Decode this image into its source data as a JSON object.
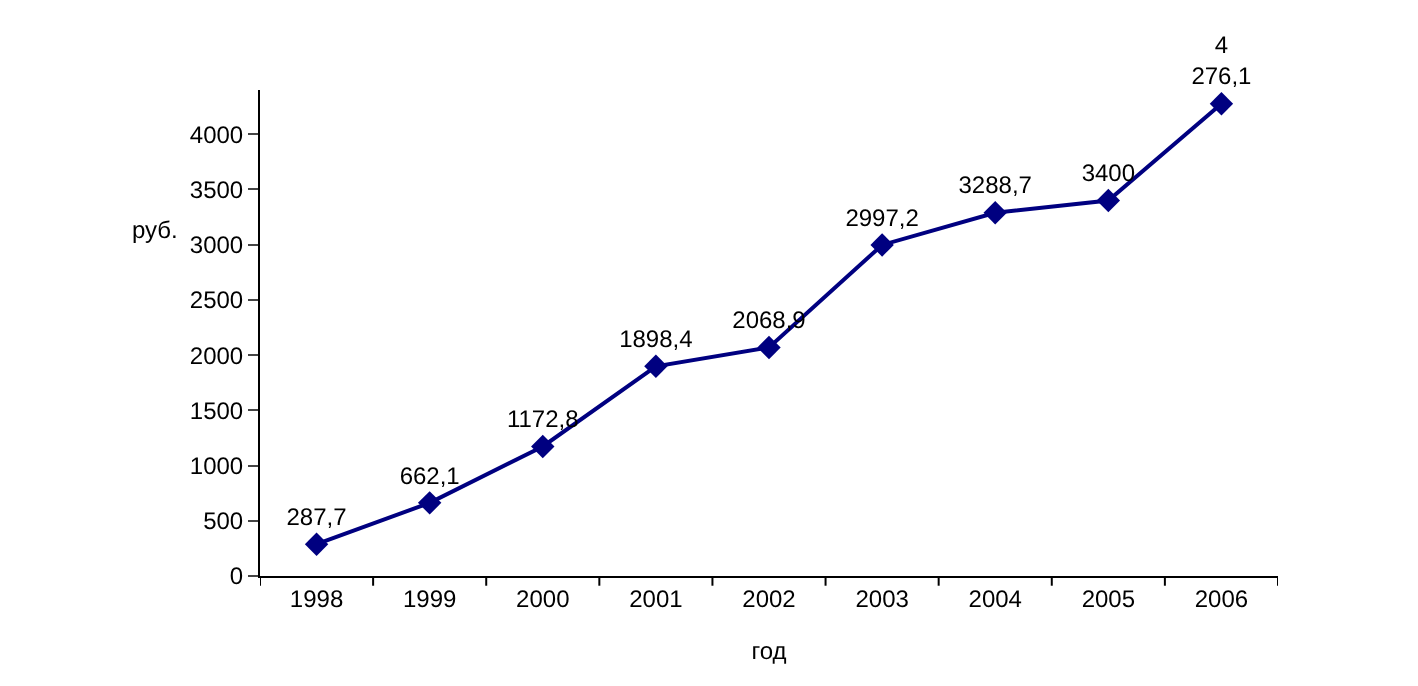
{
  "chart_data": {
    "type": "line",
    "xlabel": "год",
    "ylabel": "руб.",
    "categories": [
      "1998",
      "1999",
      "2000",
      "2001",
      "2002",
      "2003",
      "2004",
      "2005",
      "2006"
    ],
    "series": [
      {
        "color": "#000080",
        "values": [
          287.7,
          662.1,
          1172.8,
          1898.4,
          2068.9,
          2997.2,
          3288.7,
          3400,
          4276.1
        ],
        "value_labels": [
          "287,7",
          "662,1",
          "1172,8",
          "1898,4",
          "2068,9",
          "2997,2",
          "3288,7",
          "3400",
          "4 276,1"
        ]
      }
    ],
    "ylim": [
      0,
      4400
    ],
    "yticks": [
      0,
      500,
      1000,
      1500,
      2000,
      2500,
      3000,
      3500,
      4000
    ],
    "marker": "diamond",
    "line_style": "solid",
    "legend": false
  }
}
